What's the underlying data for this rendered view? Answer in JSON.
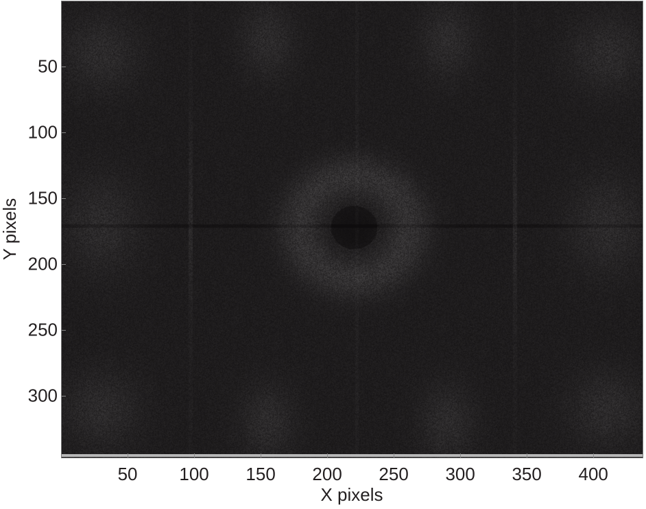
{
  "chart_data": {
    "type": "heatmap",
    "title": "",
    "xlabel": "X pixels",
    "ylabel": "Y pixels",
    "xlim": [
      0.5,
      437
    ],
    "ylim": [
      347,
      0.5
    ],
    "y_axis_direction": "down",
    "xticks": [
      50,
      100,
      150,
      200,
      250,
      300,
      350,
      400
    ],
    "xtick_labels": [
      "50",
      "100",
      "150",
      "200",
      "250",
      "300",
      "350",
      "400"
    ],
    "yticks": [
      50,
      100,
      150,
      200,
      250,
      300
    ],
    "ytick_labels": [
      "50",
      "100",
      "150",
      "200",
      "250",
      "300"
    ],
    "colormap": "gray",
    "colorbar": false,
    "grid": false,
    "colors": {
      "background": "#1e1c1d",
      "bright_features": "#4a4849"
    }
  }
}
